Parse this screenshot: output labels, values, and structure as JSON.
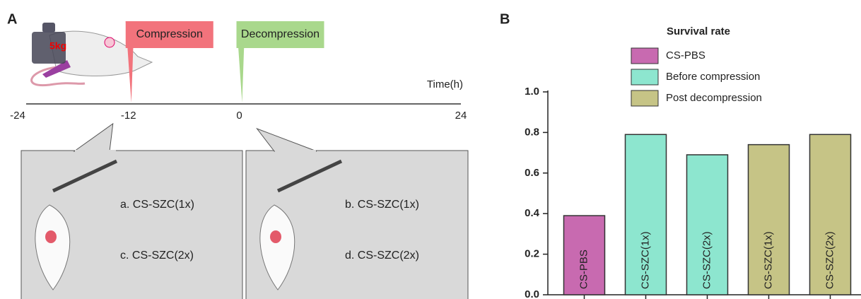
{
  "panel_a": {
    "label": "A",
    "weight": "5kg",
    "flags": [
      {
        "label": "Compression",
        "color": "#f2737c",
        "time": -12
      },
      {
        "label": "Decompression",
        "color": "#a9d88c",
        "time": 0
      }
    ],
    "time_axis": {
      "label": "Time(h)",
      "ticks": [
        -24,
        -12,
        0,
        24
      ]
    },
    "boxes": [
      {
        "time": -12,
        "items": [
          "a. CS-SZC(1x)",
          "c. CS-SZC(2x)"
        ]
      },
      {
        "time": 0,
        "items": [
          "b. CS-SZC(1x)",
          "d. CS-SZC(2x)"
        ]
      }
    ]
  },
  "chart_data": {
    "type": "bar",
    "panel_label": "B",
    "title": "Survival rate",
    "categories": [
      "CS-PBS",
      "CS-SZC(1x)",
      "CS-SZC(2x)",
      "CS-SZC(1x)",
      "CS-SZC(2x)"
    ],
    "series": [
      {
        "name": "CS-PBS",
        "color": "#c86ab0",
        "values": [
          0.39,
          null,
          null,
          null,
          null
        ]
      },
      {
        "name": "Before compression",
        "color": "#8de6cf",
        "values": [
          null,
          0.79,
          0.69,
          null,
          null
        ]
      },
      {
        "name": "Post decompression",
        "color": "#c6c486",
        "values": [
          null,
          null,
          null,
          0.74,
          0.79
        ]
      }
    ],
    "ylim": [
      0,
      1
    ],
    "yticks": [
      {
        "value": 0,
        "label": "0.0"
      },
      0.2,
      0.4,
      0.6,
      0.8,
      {
        "value": 1,
        "label": "1.0"
      }
    ],
    "legend": "top"
  }
}
